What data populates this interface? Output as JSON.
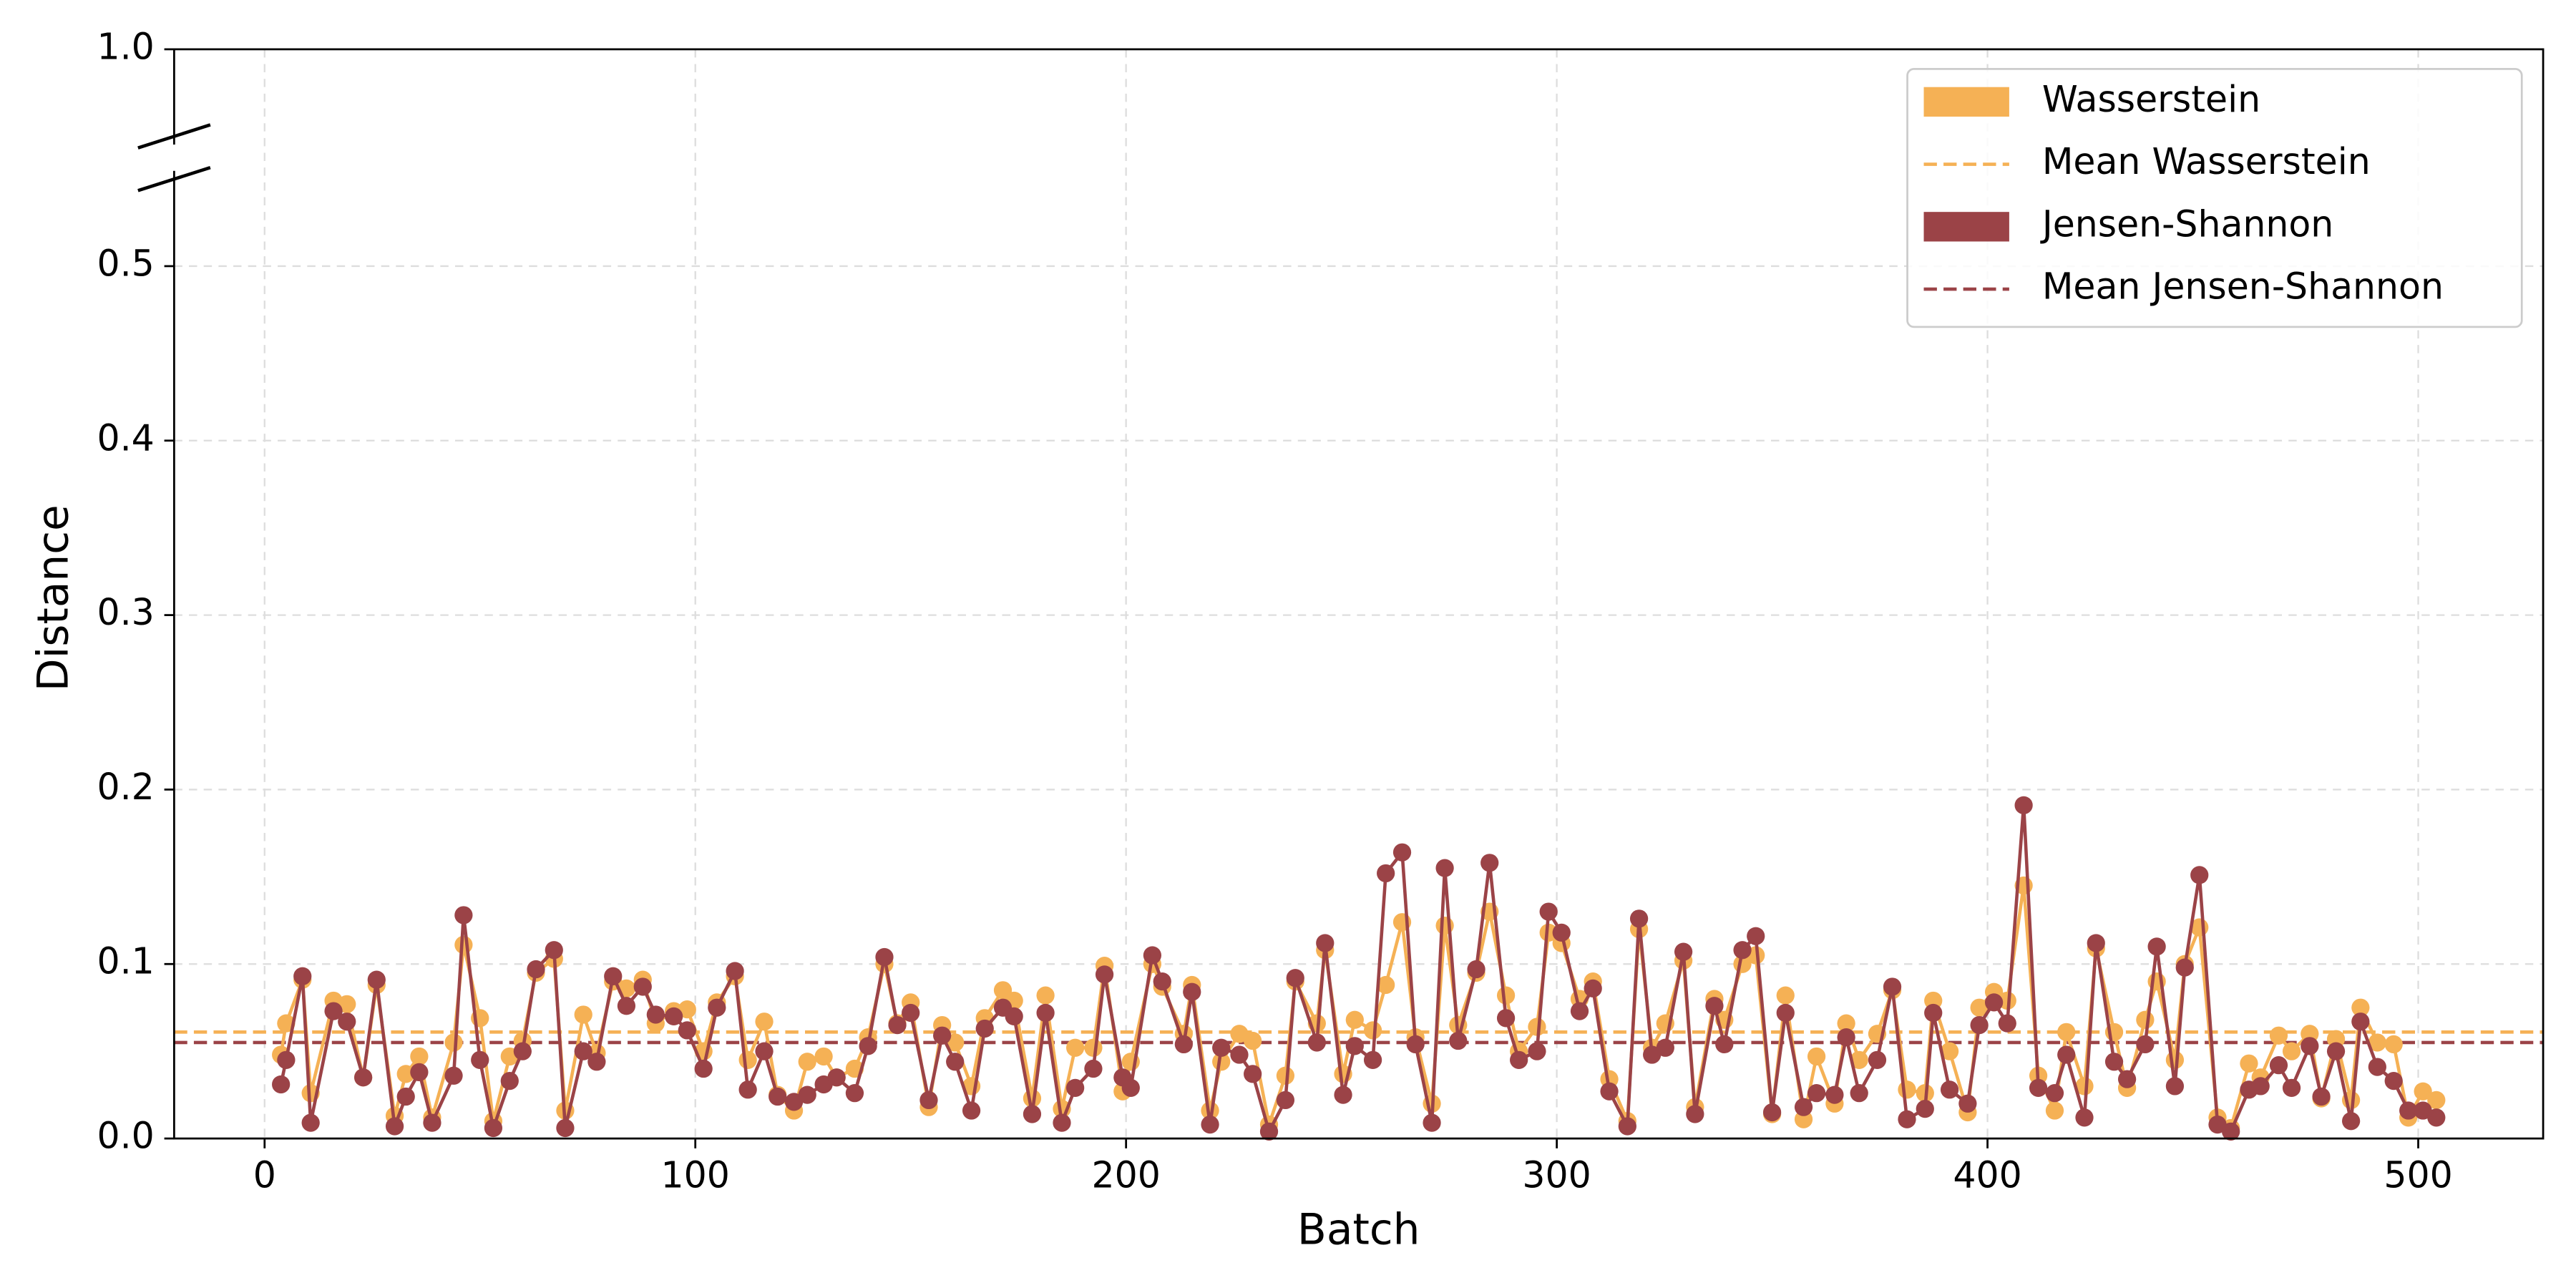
{
  "chart_data": {
    "type": "line",
    "x_label": "Batch",
    "y_label": "Distance",
    "xlim": [
      -21,
      529
    ],
    "xticks": [
      0,
      100,
      200,
      300,
      400,
      500
    ],
    "ylim": [
      0,
      1
    ],
    "y_break": 0.5,
    "yticks": [
      {
        "value": 0,
        "label": "0.0"
      },
      0.1,
      0.2,
      0.3,
      0.4,
      0.5,
      {
        "value": 1,
        "label": "1.0"
      }
    ],
    "grid": true,
    "legend": "upper right",
    "x": [
      3.8,
      5.0,
      8.8,
      10.7,
      16.0,
      19.1,
      22.9,
      26.0,
      30.2,
      32.8,
      35.9,
      38.9,
      43.9,
      46.2,
      50.0,
      53.1,
      56.9,
      59.9,
      63.0,
      67.2,
      69.8,
      74.0,
      77.1,
      80.9,
      84.0,
      87.8,
      90.8,
      95.0,
      98.1,
      101.9,
      105.0,
      109.2,
      112.2,
      116.0,
      119.1,
      122.9,
      126.0,
      129.8,
      132.8,
      137.0,
      140.1,
      143.9,
      146.9,
      150.0,
      154.2,
      157.3,
      160.3,
      164.1,
      167.2,
      171.4,
      174.0,
      178.2,
      181.3,
      185.1,
      188.2,
      192.4,
      195.0,
      199.2,
      201.1,
      206.1,
      208.4,
      213.4,
      215.3,
      219.5,
      222.1,
      226.3,
      229.4,
      233.2,
      237.0,
      239.3,
      244.3,
      246.2,
      250.4,
      253.1,
      257.3,
      260.3,
      264.1,
      267.2,
      271.0,
      274.0,
      277.1,
      281.3,
      284.4,
      288.2,
      291.2,
      295.4,
      298.1,
      301.1,
      305.3,
      308.4,
      312.2,
      316.4,
      319.1,
      322.1,
      325.2,
      329.4,
      332.1,
      336.6,
      338.9,
      343.1,
      346.2,
      350.0,
      353.1,
      357.3,
      360.3,
      364.5,
      367.2,
      370.2,
      374.4,
      377.9,
      381.3,
      385.5,
      387.4,
      391.2,
      395.4,
      398.1,
      401.5,
      404.6,
      408.4,
      411.8,
      415.6,
      418.3,
      422.5,
      425.2,
      429.4,
      432.4,
      436.6,
      439.3,
      443.5,
      445.8,
      449.2,
      453.4,
      456.5,
      460.7,
      463.4,
      467.6,
      470.6,
      474.8,
      477.5,
      480.9,
      484.4,
      486.6,
      490.5,
      494.3,
      497.7,
      501.1,
      504.2
    ],
    "series": [
      {
        "name": "Wasserstein",
        "color": "#f5b155",
        "values": [
          0.048,
          0.066,
          0.091,
          0.026,
          0.079,
          0.077,
          0.035,
          0.088,
          0.013,
          0.037,
          0.047,
          0.012,
          0.055,
          0.111,
          0.069,
          0.01,
          0.047,
          0.056,
          0.095,
          0.103,
          0.016,
          0.071,
          0.049,
          0.09,
          0.086,
          0.091,
          0.066,
          0.073,
          0.074,
          0.05,
          0.078,
          0.093,
          0.045,
          0.067,
          0.025,
          0.016,
          0.044,
          0.047,
          0.035,
          0.04,
          0.058,
          0.1,
          0.066,
          0.078,
          0.018,
          0.065,
          0.055,
          0.03,
          0.069,
          0.085,
          0.079,
          0.023,
          0.082,
          0.017,
          0.052,
          0.052,
          0.099,
          0.027,
          0.044,
          0.1,
          0.087,
          0.06,
          0.088,
          0.016,
          0.044,
          0.06,
          0.056,
          0.008,
          0.036,
          0.09,
          0.066,
          0.108,
          0.037,
          0.068,
          0.062,
          0.088,
          0.124,
          0.058,
          0.02,
          0.122,
          0.065,
          0.095,
          0.13,
          0.082,
          0.05,
          0.064,
          0.118,
          0.112,
          0.08,
          0.09,
          0.034,
          0.01,
          0.12,
          0.052,
          0.066,
          0.102,
          0.018,
          0.08,
          0.068,
          0.1,
          0.105,
          0.014,
          0.082,
          0.011,
          0.047,
          0.02,
          0.066,
          0.045,
          0.06,
          0.085,
          0.028,
          0.026,
          0.079,
          0.05,
          0.015,
          0.075,
          0.084,
          0.079,
          0.145,
          0.036,
          0.016,
          0.061,
          0.03,
          0.109,
          0.061,
          0.029,
          0.068,
          0.09,
          0.045,
          0.1,
          0.121,
          0.012,
          0.006,
          0.043,
          0.035,
          0.059,
          0.05,
          0.06,
          0.023,
          0.057,
          0.022,
          0.075,
          0.055,
          0.054,
          0.012,
          0.027,
          0.022
        ]
      },
      {
        "name": "Jensen-Shannon",
        "color": "#9b4347",
        "values": [
          0.031,
          0.045,
          0.093,
          0.009,
          0.073,
          0.067,
          0.035,
          0.091,
          0.007,
          0.024,
          0.038,
          0.009,
          0.036,
          0.128,
          0.045,
          0.006,
          0.033,
          0.05,
          0.097,
          0.108,
          0.006,
          0.05,
          0.044,
          0.093,
          0.076,
          0.087,
          0.071,
          0.07,
          0.062,
          0.04,
          0.075,
          0.096,
          0.028,
          0.05,
          0.024,
          0.021,
          0.025,
          0.031,
          0.035,
          0.026,
          0.053,
          0.104,
          0.065,
          0.072,
          0.022,
          0.059,
          0.044,
          0.016,
          0.063,
          0.075,
          0.07,
          0.014,
          0.072,
          0.009,
          0.029,
          0.04,
          0.094,
          0.035,
          0.029,
          0.105,
          0.09,
          0.054,
          0.084,
          0.008,
          0.052,
          0.048,
          0.037,
          0.004,
          0.022,
          0.092,
          0.055,
          0.112,
          0.025,
          0.053,
          0.045,
          0.152,
          0.164,
          0.054,
          0.009,
          0.155,
          0.056,
          0.097,
          0.158,
          0.069,
          0.045,
          0.05,
          0.13,
          0.118,
          0.073,
          0.086,
          0.027,
          0.007,
          0.126,
          0.048,
          0.052,
          0.107,
          0.014,
          0.076,
          0.054,
          0.108,
          0.116,
          0.015,
          0.072,
          0.018,
          0.026,
          0.025,
          0.058,
          0.026,
          0.045,
          0.087,
          0.011,
          0.017,
          0.072,
          0.028,
          0.02,
          0.065,
          0.078,
          0.066,
          0.191,
          0.029,
          0.026,
          0.048,
          0.012,
          0.112,
          0.044,
          0.034,
          0.054,
          0.11,
          0.03,
          0.098,
          0.151,
          0.008,
          0.004,
          0.028,
          0.03,
          0.042,
          0.029,
          0.053,
          0.024,
          0.05,
          0.01,
          0.067,
          0.041,
          0.033,
          0.016,
          0.016,
          0.012
        ]
      }
    ],
    "hlines": [
      {
        "name": "Mean Wasserstein",
        "value": 0.061,
        "color": "#f5b155",
        "style": "dashed"
      },
      {
        "name": "Mean Jensen-Shannon",
        "value": 0.055,
        "color": "#9b4347",
        "style": "dashed"
      }
    ]
  }
}
